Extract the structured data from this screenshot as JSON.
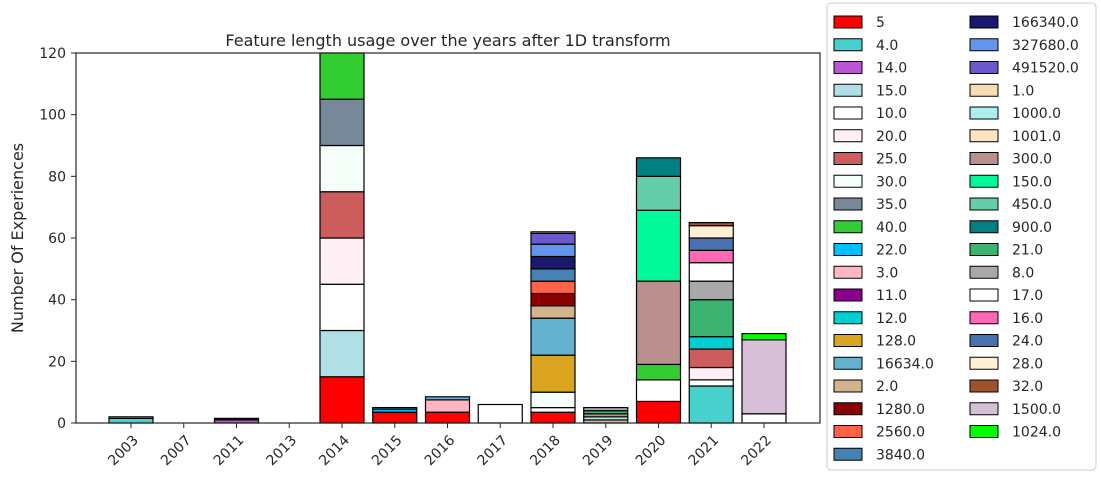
{
  "chart_data": {
    "type": "bar",
    "stacked": true,
    "title": "Feature length usage over the years after 1D transform",
    "xlabel": "",
    "ylabel": "Number Of Experiences",
    "ylim": [
      0,
      120
    ],
    "yticks": [
      0,
      20,
      40,
      60,
      80,
      100,
      120
    ],
    "grid": false,
    "legend_placement": "outside-right",
    "categories": [
      "2003",
      "2007",
      "2011",
      "2013",
      "2014",
      "2015",
      "2016",
      "2017",
      "2018",
      "2019",
      "2020",
      "2021",
      "2022"
    ],
    "series": [
      {
        "name": "5",
        "color": "#ff0000",
        "values": [
          0,
          0,
          0,
          0,
          15,
          3.5,
          3.5,
          0,
          3.5,
          0,
          7,
          0,
          0
        ]
      },
      {
        "name": "4.0",
        "color": "#48d1cc",
        "values": [
          1.5,
          0,
          0,
          0,
          0,
          0,
          0,
          0,
          0,
          0,
          0,
          12,
          0
        ]
      },
      {
        "name": "14.0",
        "color": "#ba55d3",
        "values": [
          0,
          0,
          1,
          0,
          0,
          0,
          0,
          0,
          0,
          0,
          0,
          0,
          0
        ]
      },
      {
        "name": "15.0",
        "color": "#b0dfe6",
        "values": [
          0,
          0,
          0,
          0,
          15,
          0,
          0,
          0,
          0,
          0,
          0,
          0,
          0
        ]
      },
      {
        "name": "10.0",
        "color": "#ffffff",
        "values": [
          0,
          0,
          0,
          0,
          15,
          0,
          0,
          0,
          1.5,
          0,
          7,
          2,
          0
        ]
      },
      {
        "name": "20.0",
        "color": "#fff0f5",
        "values": [
          0,
          0,
          0,
          0,
          15,
          0,
          0,
          0,
          0,
          0,
          0,
          4,
          0
        ]
      },
      {
        "name": "25.0",
        "color": "#cd5c5c",
        "values": [
          0,
          0,
          0,
          0,
          15,
          0,
          0,
          0,
          0,
          0,
          0,
          6,
          0
        ]
      },
      {
        "name": "30.0",
        "color": "#f5fffa",
        "values": [
          0,
          0,
          0,
          0,
          15,
          0,
          0,
          0,
          5,
          0,
          0,
          0,
          0
        ]
      },
      {
        "name": "35.0",
        "color": "#778899",
        "values": [
          0,
          0,
          0,
          0,
          15,
          0,
          0,
          0,
          0,
          0,
          0,
          0,
          0
        ]
      },
      {
        "name": "40.0",
        "color": "#32cd32",
        "values": [
          0,
          0,
          0,
          0,
          15,
          0,
          0,
          0,
          0,
          0,
          5,
          0,
          0
        ]
      },
      {
        "name": "22.0",
        "color": "#00bfff",
        "values": [
          0,
          0,
          0,
          0,
          0,
          1,
          0,
          0,
          0,
          0,
          0,
          0,
          0
        ]
      },
      {
        "name": "3.0",
        "color": "#ffb6c1",
        "values": [
          0,
          0,
          0,
          0,
          0,
          0,
          4,
          0,
          0,
          0,
          0,
          0,
          0
        ]
      },
      {
        "name": "11.0",
        "color": "#8b008b",
        "values": [
          0,
          0,
          0.5,
          0,
          0,
          0,
          0,
          0,
          0,
          0,
          0,
          0,
          0
        ]
      },
      {
        "name": "12.0",
        "color": "#00ced1",
        "values": [
          0,
          0,
          0,
          0,
          0,
          0,
          0,
          0,
          0,
          0,
          0,
          4,
          0
        ]
      },
      {
        "name": "128.0",
        "color": "#daa520",
        "values": [
          0,
          0,
          0,
          0,
          0,
          0,
          0,
          0,
          12,
          0,
          0,
          0,
          0
        ]
      },
      {
        "name": "16634.0",
        "color": "#63b3d0",
        "values": [
          0,
          0,
          0,
          0,
          0,
          0.5,
          1,
          0,
          12,
          0,
          0,
          0,
          0
        ]
      },
      {
        "name": "2.0",
        "color": "#d2b48c",
        "values": [
          0,
          0,
          0,
          0,
          0,
          0,
          0,
          0,
          4,
          1,
          0,
          0,
          0
        ]
      },
      {
        "name": "1280.0",
        "color": "#8b0000",
        "values": [
          0,
          0,
          0,
          0,
          0,
          0,
          0,
          0,
          4,
          0,
          0,
          0,
          0
        ]
      },
      {
        "name": "2560.0",
        "color": "#ff6347",
        "values": [
          0,
          0,
          0,
          0,
          0,
          0,
          0,
          0,
          4,
          0,
          0,
          0,
          0
        ]
      },
      {
        "name": "3840.0",
        "color": "#4682b4",
        "values": [
          0,
          0,
          0,
          0,
          0,
          0,
          0,
          0,
          4,
          0,
          0,
          0,
          0
        ]
      },
      {
        "name": "166340.0",
        "color": "#191970",
        "values": [
          0,
          0,
          0,
          0,
          0,
          0,
          0,
          0,
          4,
          0,
          0,
          0,
          0
        ]
      },
      {
        "name": "327680.0",
        "color": "#6495ed",
        "values": [
          0,
          0,
          0,
          0,
          0,
          0,
          0,
          0,
          4,
          0,
          0,
          0,
          0
        ]
      },
      {
        "name": "491520.0",
        "color": "#6a5acd",
        "values": [
          0,
          0,
          0,
          0,
          0,
          0,
          0,
          0,
          3.5,
          0,
          0,
          0,
          0
        ]
      },
      {
        "name": "1.0",
        "color": "#f5deb3",
        "values": [
          0,
          0,
          0,
          0,
          0,
          0,
          0,
          0,
          0.5,
          0,
          0,
          0,
          0
        ]
      },
      {
        "name": "1000.0",
        "color": "#afeeee",
        "values": [
          0.5,
          0,
          0,
          0,
          0,
          0,
          0,
          0,
          0,
          1,
          0,
          0,
          0
        ]
      },
      {
        "name": "1001.0",
        "color": "#ffe4c4",
        "values": [
          0,
          0,
          0,
          0,
          0,
          0,
          0,
          0,
          0,
          0,
          0,
          0,
          0
        ]
      },
      {
        "name": "300.0",
        "color": "#bc8f8f",
        "values": [
          0,
          0,
          0,
          0,
          0,
          0,
          0,
          0,
          0,
          1,
          27,
          0,
          0
        ]
      },
      {
        "name": "150.0",
        "color": "#00fa9a",
        "values": [
          0,
          0,
          0,
          0,
          0,
          0,
          0,
          0,
          0,
          0,
          23,
          0,
          0
        ]
      },
      {
        "name": "450.0",
        "color": "#66cdaa",
        "values": [
          0,
          0,
          0,
          0,
          0,
          0,
          0,
          0,
          0,
          0,
          11,
          0,
          0
        ]
      },
      {
        "name": "900.0",
        "color": "#008080",
        "values": [
          0,
          0,
          0,
          0,
          0,
          0,
          0,
          0,
          0,
          0,
          6,
          0,
          0
        ]
      },
      {
        "name": "21.0",
        "color": "#3cb371",
        "values": [
          0,
          0,
          0,
          0,
          0,
          0,
          0,
          0,
          0,
          1,
          0,
          12,
          0
        ]
      },
      {
        "name": "8.0",
        "color": "#a9a9a9",
        "values": [
          0,
          0,
          0,
          0,
          0,
          0,
          0,
          0,
          0,
          1,
          0,
          6,
          0
        ]
      },
      {
        "name": "17.0",
        "color": "#fffffe",
        "values": [
          0,
          0,
          0,
          0,
          0,
          0,
          0,
          6,
          0,
          0,
          0,
          6,
          3
        ]
      },
      {
        "name": "16.0",
        "color": "#ff69b4",
        "values": [
          0,
          0,
          0,
          0,
          0,
          0,
          0,
          0,
          0,
          0,
          0,
          4,
          0
        ]
      },
      {
        "name": "24.0",
        "color": "#4a72b0",
        "values": [
          0,
          0,
          0,
          0,
          0,
          0,
          0,
          0,
          0,
          0,
          0,
          4,
          0
        ]
      },
      {
        "name": "28.0",
        "color": "#ffefd5",
        "values": [
          0,
          0,
          0,
          0,
          0,
          0,
          0,
          0,
          0,
          0,
          0,
          4,
          0
        ]
      },
      {
        "name": "32.0",
        "color": "#a0522d",
        "values": [
          0,
          0,
          0,
          0,
          0,
          0,
          0,
          0,
          0,
          0,
          0,
          1,
          0
        ]
      },
      {
        "name": "1500.0",
        "color": "#d8bfd8",
        "values": [
          0,
          0,
          0,
          0,
          0,
          0,
          0,
          0,
          0,
          0,
          0,
          0,
          24
        ]
      },
      {
        "name": "1024.0",
        "color": "#00ff00",
        "values": [
          0,
          0,
          0,
          0,
          0,
          0,
          0,
          0,
          0,
          0,
          0,
          0,
          2
        ]
      }
    ]
  }
}
